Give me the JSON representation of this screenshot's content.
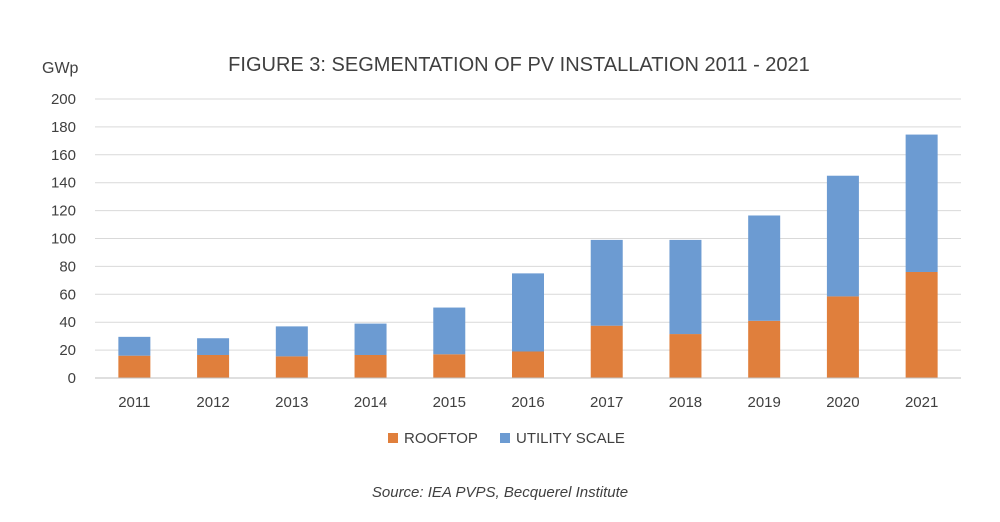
{
  "chart_data": {
    "type": "bar",
    "stacked": true,
    "title": "FIGURE 3: SEGMENTATION OF PV INSTALLATION 2011 - 2021",
    "ylabel": "GWp",
    "xlabel": "",
    "ylim": [
      0,
      200
    ],
    "yticks": [
      0,
      20,
      40,
      60,
      80,
      100,
      120,
      140,
      160,
      180,
      200
    ],
    "grid": true,
    "legend_position": "bottom",
    "categories": [
      "2011",
      "2012",
      "2013",
      "2014",
      "2015",
      "2016",
      "2017",
      "2018",
      "2019",
      "2020",
      "2021"
    ],
    "series": [
      {
        "name": "ROOFTOP",
        "color": "#e07f3c",
        "values": [
          16,
          16.5,
          15.5,
          16.5,
          17,
          19,
          37.5,
          31.5,
          41,
          58.5,
          76
        ]
      },
      {
        "name": "UTILITY SCALE",
        "color": "#6c9bd2",
        "values": [
          13.5,
          12,
          21.5,
          22.5,
          33.5,
          56,
          61.5,
          67.5,
          75.5,
          86.5,
          98.5
        ]
      }
    ],
    "source": "Source: IEA PVPS, Becquerel Institute"
  }
}
